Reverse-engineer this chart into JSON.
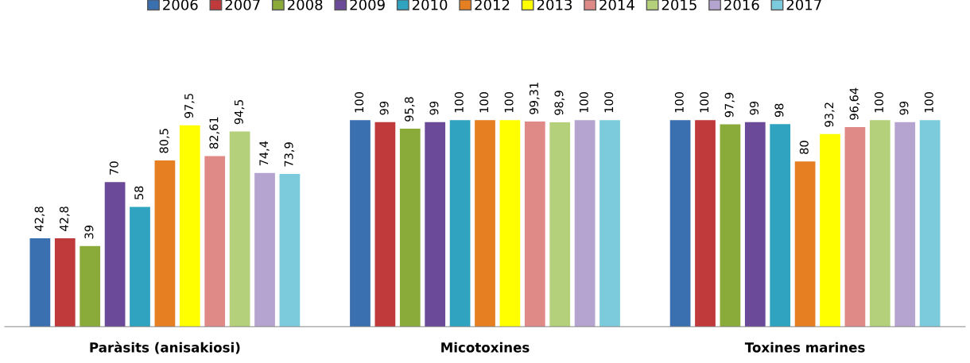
{
  "chart_data": {
    "type": "bar",
    "categories": [
      "Paràsits (anisakiosi)",
      "Micotoxines",
      "Toxines marines"
    ],
    "series": [
      {
        "name": "2006",
        "color": "#3a6fb0",
        "values": [
          42.8,
          100,
          100
        ],
        "value_labels": [
          "42,8",
          "100",
          "100"
        ]
      },
      {
        "name": "2007",
        "color": "#c0393b",
        "values": [
          42.8,
          99,
          100
        ],
        "value_labels": [
          "42,8",
          "99",
          "100"
        ]
      },
      {
        "name": "2008",
        "color": "#8aaa3a",
        "values": [
          39,
          95.8,
          97.9
        ],
        "value_labels": [
          "39",
          "95,8",
          "97,9"
        ]
      },
      {
        "name": "2009",
        "color": "#6b4a9a",
        "values": [
          70,
          99,
          99
        ],
        "value_labels": [
          "70",
          "99",
          "99"
        ]
      },
      {
        "name": "2010",
        "color": "#2fa3c0",
        "values": [
          58,
          100,
          98
        ],
        "value_labels": [
          "58",
          "100",
          "98"
        ]
      },
      {
        "name": "2012",
        "color": "#e67e22",
        "values": [
          80.5,
          100,
          80
        ],
        "value_labels": [
          "80,5",
          "100",
          "80"
        ]
      },
      {
        "name": "2013",
        "color": "#ffff00",
        "values": [
          97.5,
          100,
          93.2
        ],
        "value_labels": [
          "97,5",
          "100",
          "93,2"
        ]
      },
      {
        "name": "2014",
        "color": "#e08a88",
        "values": [
          82.61,
          99.31,
          96.64
        ],
        "value_labels": [
          "82,61",
          "99,31",
          "96,64"
        ]
      },
      {
        "name": "2015",
        "color": "#b5d07a",
        "values": [
          94.5,
          98.9,
          100
        ],
        "value_labels": [
          "94,5",
          "98,9",
          "100"
        ]
      },
      {
        "name": "2016",
        "color": "#b6a4d0",
        "values": [
          74.4,
          100,
          99
        ],
        "value_labels": [
          "74,4",
          "100",
          "99"
        ]
      },
      {
        "name": "2017",
        "color": "#7ccbdc",
        "values": [
          73.9,
          100,
          100
        ],
        "value_labels": [
          "73,9",
          "100",
          "100"
        ]
      }
    ],
    "legend": "top",
    "tick_labels": "x"
  }
}
